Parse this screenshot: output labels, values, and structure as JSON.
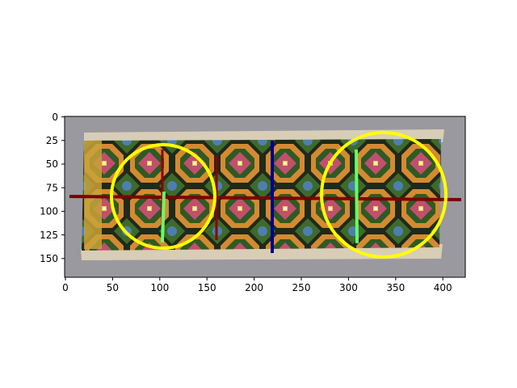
{
  "figure": {
    "x_ticks": [
      "0",
      "50",
      "100",
      "150",
      "200",
      "250",
      "300",
      "350",
      "400"
    ],
    "y_ticks": [
      "0",
      "25",
      "50",
      "75",
      "100",
      "125",
      "150"
    ],
    "x_range": [
      0,
      420
    ],
    "y_range": [
      0,
      170
    ],
    "image_content": "woven textile panel with repeating octagon lattice pattern (green, orange, pink, blue)",
    "annotations": {
      "horizontal_line": {
        "color": "#7a0000",
        "from": [
          5,
          85
        ],
        "to": [
          418,
          88
        ]
      },
      "vertical_lines": [
        {
          "color": "#8b0000",
          "x": 103,
          "y_from": 35,
          "y_to": 135
        },
        {
          "color": "#8b0000",
          "x": 160,
          "y_from": 42,
          "y_to": 132
        },
        {
          "color": "#00008b",
          "x": 219,
          "y_from": 25,
          "y_to": 145
        }
      ],
      "green_lines": [
        {
          "color": "#66ff66",
          "from": [
            104,
            80
          ],
          "to": [
            102,
            135
          ]
        },
        {
          "color": "#66ff66",
          "from": [
            308,
            35
          ],
          "to": [
            309,
            135
          ]
        }
      ],
      "circles": [
        {
          "color": "#ffff00",
          "cx": 103,
          "cy": 85,
          "r": 55
        },
        {
          "color": "#ffff00",
          "cx": 336,
          "cy": 83,
          "r": 66
        }
      ]
    },
    "colors": {
      "background_gray": "#9a999f",
      "fabric_edge": "#d8cdb6",
      "pattern_dark": "#1e2a1a",
      "pattern_green": "#3f6a2c",
      "pattern_orange": "#d48a32",
      "pattern_pink": "#c0506e",
      "pattern_blue": "#4c7fb0"
    }
  }
}
